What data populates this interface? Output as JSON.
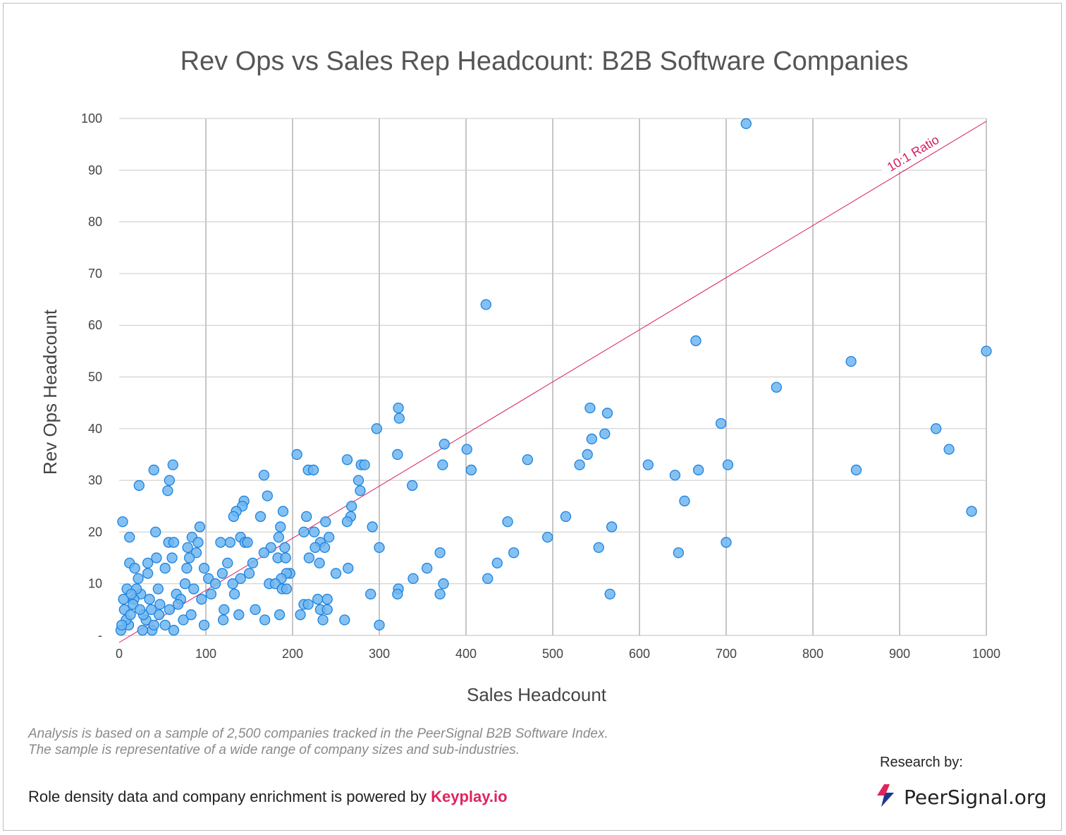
{
  "title": "Rev Ops vs Sales Rep Headcount: B2B Software Companies",
  "footer": {
    "note": "Analysis is based on a sample of 2,500 companies tracked in the PeerSignal B2B Software Index. The sample is representative of a wide range of company sizes and sub-industries.",
    "powered_prefix": "Role density data and company enrichment is powered by ",
    "powered_brand": "Keyplay.io",
    "research_label": "Research by:",
    "logo_text": "PeerSignal.org",
    "logo_icon": "peersignal-bolt-icon"
  },
  "colors": {
    "point_fill": "#6fb6f0",
    "point_stroke": "#1a82e0",
    "ratio_line": "#d81b60",
    "grid": "#8c8c8c",
    "brand": "#e0245e"
  },
  "chart_data": {
    "type": "scatter",
    "title": "Rev Ops vs Sales Rep Headcount: B2B Software Companies",
    "xlabel": "Sales Headcount",
    "ylabel": "Rev Ops Headcount",
    "xlim": [
      0,
      1000
    ],
    "ylim": [
      0,
      100
    ],
    "x_ticks": [
      "0",
      "100",
      "200",
      "300",
      "400",
      "500",
      "600",
      "700",
      "800",
      "900",
      "1000"
    ],
    "y_ticks": [
      "-",
      "10",
      "20",
      "30",
      "40",
      "50",
      "60",
      "70",
      "80",
      "90",
      "100"
    ],
    "grid": true,
    "reference_line": {
      "label": "10:1 Ratio",
      "from": [
        0,
        0
      ],
      "to": [
        1000,
        100
      ]
    },
    "series": [
      {
        "points": [
          [
            723,
            99
          ],
          [
            423,
            64
          ],
          [
            665,
            57
          ],
          [
            1000,
            55
          ],
          [
            844,
            53
          ],
          [
            758,
            48
          ],
          [
            543,
            44
          ],
          [
            322,
            44
          ],
          [
            563,
            43
          ],
          [
            323,
            42
          ],
          [
            694,
            41
          ],
          [
            297,
            40
          ],
          [
            942,
            40
          ],
          [
            560,
            39
          ],
          [
            545,
            38
          ],
          [
            375,
            37
          ],
          [
            957,
            36
          ],
          [
            401,
            36
          ],
          [
            540,
            35
          ],
          [
            205,
            35
          ],
          [
            321,
            35
          ],
          [
            471,
            34
          ],
          [
            263,
            34
          ],
          [
            610,
            33
          ],
          [
            373,
            33
          ],
          [
            531,
            33
          ],
          [
            702,
            33
          ],
          [
            279,
            33
          ],
          [
            62,
            33
          ],
          [
            283,
            33
          ],
          [
            406,
            32
          ],
          [
            668,
            32
          ],
          [
            850,
            32
          ],
          [
            40,
            32
          ],
          [
            218,
            32
          ],
          [
            224,
            32
          ],
          [
            641,
            31
          ],
          [
            167,
            31
          ],
          [
            58,
            30
          ],
          [
            276,
            30
          ],
          [
            338,
            29
          ],
          [
            23,
            29
          ],
          [
            56,
            28
          ],
          [
            278,
            28
          ],
          [
            171,
            27
          ],
          [
            652,
            26
          ],
          [
            144,
            26
          ],
          [
            142,
            25
          ],
          [
            268,
            25
          ],
          [
            983,
            24
          ],
          [
            135,
            24
          ],
          [
            189,
            24
          ],
          [
            132,
            23
          ],
          [
            515,
            23
          ],
          [
            267,
            23
          ],
          [
            163,
            23
          ],
          [
            216,
            23
          ],
          [
            448,
            22
          ],
          [
            4,
            22
          ],
          [
            263,
            22
          ],
          [
            238,
            22
          ],
          [
            93,
            21
          ],
          [
            186,
            21
          ],
          [
            568,
            21
          ],
          [
            292,
            21
          ],
          [
            494,
            19
          ],
          [
            42,
            20
          ],
          [
            213,
            20
          ],
          [
            225,
            20
          ],
          [
            140,
            19
          ],
          [
            184,
            19
          ],
          [
            84,
            19
          ],
          [
            242,
            19
          ],
          [
            145,
            18
          ],
          [
            148,
            18
          ],
          [
            700,
            18
          ],
          [
            57,
            18
          ],
          [
            63,
            18
          ],
          [
            91,
            18
          ],
          [
            117,
            18
          ],
          [
            128,
            18
          ],
          [
            232,
            18
          ],
          [
            12,
            19
          ],
          [
            79,
            17
          ],
          [
            553,
            17
          ],
          [
            300,
            17
          ],
          [
            175,
            17
          ],
          [
            191,
            17
          ],
          [
            237,
            17
          ],
          [
            226,
            17
          ],
          [
            167,
            16
          ],
          [
            89,
            16
          ],
          [
            370,
            16
          ],
          [
            645,
            16
          ],
          [
            455,
            16
          ],
          [
            183,
            15
          ],
          [
            192,
            15
          ],
          [
            81,
            15
          ],
          [
            43,
            15
          ],
          [
            61,
            15
          ],
          [
            219,
            15
          ],
          [
            436,
            14
          ],
          [
            154,
            14
          ],
          [
            231,
            14
          ],
          [
            12,
            14
          ],
          [
            33,
            14
          ],
          [
            125,
            14
          ],
          [
            355,
            13
          ],
          [
            264,
            13
          ],
          [
            78,
            13
          ],
          [
            18,
            13
          ],
          [
            53,
            13
          ],
          [
            98,
            13
          ],
          [
            250,
            12
          ],
          [
            150,
            12
          ],
          [
            197,
            12
          ],
          [
            193,
            12
          ],
          [
            33,
            12
          ],
          [
            119,
            12
          ],
          [
            425,
            11
          ],
          [
            339,
            11
          ],
          [
            140,
            11
          ],
          [
            187,
            11
          ],
          [
            22,
            11
          ],
          [
            103,
            11
          ],
          [
            374,
            10
          ],
          [
            173,
            10
          ],
          [
            180,
            10
          ],
          [
            76,
            10
          ],
          [
            111,
            10
          ],
          [
            131,
            10
          ],
          [
            322,
            9
          ],
          [
            9,
            9
          ],
          [
            86,
            9
          ],
          [
            188,
            9
          ],
          [
            193,
            9
          ],
          [
            45,
            9
          ],
          [
            290,
            8
          ],
          [
            321,
            8
          ],
          [
            370,
            8
          ],
          [
            566,
            8
          ],
          [
            106,
            8
          ],
          [
            133,
            8
          ],
          [
            25,
            8
          ],
          [
            66,
            8
          ],
          [
            229,
            7
          ],
          [
            240,
            7
          ],
          [
            17,
            7
          ],
          [
            71,
            7
          ],
          [
            95,
            7
          ],
          [
            157,
            5
          ],
          [
            213,
            6
          ],
          [
            218,
            6
          ],
          [
            232,
            5
          ],
          [
            240,
            5
          ],
          [
            121,
            5
          ],
          [
            185,
            4
          ],
          [
            209,
            4
          ],
          [
            138,
            4
          ],
          [
            168,
            3
          ],
          [
            235,
            3
          ],
          [
            120,
            3
          ],
          [
            260,
            3
          ],
          [
            300,
            2
          ],
          [
            98,
            2
          ],
          [
            63,
            1
          ],
          [
            38,
            1
          ],
          [
            2,
            1
          ],
          [
            11,
            2
          ],
          [
            31,
            3
          ],
          [
            6,
            5
          ],
          [
            16,
            6
          ],
          [
            28,
            4
          ],
          [
            47,
            6
          ],
          [
            53,
            2
          ],
          [
            8,
            3
          ],
          [
            20,
            9
          ],
          [
            24,
            5
          ],
          [
            35,
            7
          ],
          [
            40,
            2
          ],
          [
            46,
            4
          ],
          [
            5,
            7
          ],
          [
            13,
            4
          ],
          [
            27,
            1
          ],
          [
            58,
            5
          ],
          [
            74,
            3
          ],
          [
            68,
            6
          ],
          [
            83,
            4
          ],
          [
            37,
            5
          ],
          [
            14,
            8
          ],
          [
            3,
            2
          ]
        ]
      }
    ]
  }
}
